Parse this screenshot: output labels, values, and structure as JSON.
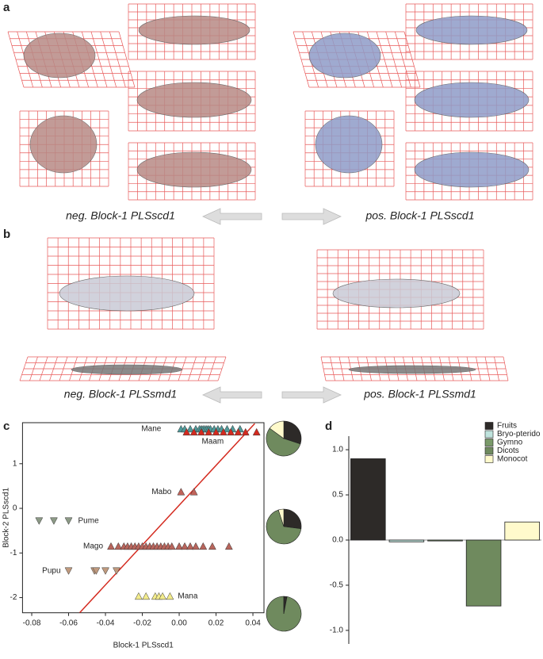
{
  "panels": {
    "a": "a",
    "b": "b",
    "c": "c",
    "d": "d"
  },
  "captions": {
    "a_neg": "neg. Block-1 PLSscd1",
    "a_pos": "pos. Block-1 PLSscd1",
    "b_neg": "neg. Block-1 PLSsmd1",
    "b_pos": "pos. Block-1 PLSsmd1"
  },
  "chart_data": [
    {
      "type": "scatter",
      "xlabel": "Block-1 PLSscd1",
      "ylabel": "Block-2 PLSscd1",
      "xlim": [
        -0.085,
        0.046
      ],
      "ylim": [
        -2.34,
        1.92
      ],
      "xticks": [
        -0.08,
        -0.06,
        -0.04,
        -0.02,
        {
          "value": 0,
          "label": "0.00"
        },
        0.02,
        0.04
      ],
      "yticks": [
        -2,
        -1,
        0,
        1
      ],
      "fit": {
        "color": "#d42a1f",
        "x": [
          -0.054,
          0.041
        ],
        "y": [
          -2.34,
          1.9
        ]
      },
      "series": [
        {
          "name": "Mane",
          "color": "#4f9a9a",
          "marker": "up",
          "x": [
            0.001,
            0.003,
            0.006,
            0.009,
            0.011,
            0.012,
            0.013,
            0.014,
            0.015,
            0.016,
            0.017,
            0.019,
            0.021,
            0.023,
            0.026,
            0.029,
            0.033
          ],
          "values": [
            1.78,
            1.78,
            1.78,
            1.78,
            1.78,
            1.78,
            1.78,
            1.78,
            1.78,
            1.78,
            1.78,
            1.78,
            1.78,
            1.78,
            1.78,
            1.78,
            1.78
          ]
        },
        {
          "name": "Maam",
          "color": "#d42a1f",
          "marker": "up",
          "x": [
            0.004,
            0.008,
            0.012,
            0.016,
            0.02,
            0.024,
            0.028,
            0.032,
            0.036,
            0.042
          ],
          "values": [
            1.71,
            1.71,
            1.71,
            1.71,
            1.71,
            1.71,
            1.71,
            1.71,
            1.71,
            1.71
          ]
        },
        {
          "name": "Mabo",
          "color": "#c0635a",
          "marker": "up",
          "x": [
            0.001,
            0.008
          ],
          "values": [
            0.37,
            0.37
          ]
        },
        {
          "name": "Pume",
          "color": "#8c9a86",
          "marker": "down",
          "x": [
            -0.076,
            -0.068,
            -0.06
          ],
          "values": [
            -0.28,
            -0.28,
            -0.28
          ]
        },
        {
          "name": "Mago",
          "color": "#b8655c",
          "marker": "up",
          "x": [
            -0.037,
            -0.033,
            -0.03,
            -0.028,
            -0.026,
            -0.024,
            -0.022,
            -0.02,
            -0.018,
            -0.016,
            -0.014,
            -0.012,
            -0.01,
            -0.008,
            -0.006,
            -0.004,
            0,
            0.003,
            0.006,
            0.009,
            0.013,
            0.018,
            0.027
          ],
          "values": [
            -0.85,
            -0.85,
            -0.85,
            -0.85,
            -0.85,
            -0.85,
            -0.85,
            -0.85,
            -0.85,
            -0.85,
            -0.85,
            -0.85,
            -0.85,
            -0.85,
            -0.85,
            -0.85,
            -0.85,
            -0.85,
            -0.85,
            -0.85,
            -0.85,
            -0.85,
            -0.85
          ]
        },
        {
          "name": "Pupu",
          "color": "#c09a7e",
          "marker": "down",
          "x": [
            -0.06,
            -0.046,
            -0.045,
            -0.04,
            -0.034
          ],
          "values": [
            -1.4,
            -1.4,
            -1.4,
            -1.4,
            -1.4
          ]
        },
        {
          "name": "Mana",
          "color": "#f3ec8c",
          "marker": "up",
          "x": [
            -0.022,
            -0.018,
            -0.013,
            -0.011,
            -0.009,
            -0.005
          ],
          "values": [
            -1.97,
            -1.97,
            -1.97,
            -1.97,
            -1.97,
            -1.97
          ]
        }
      ]
    },
    {
      "type": "pie",
      "colors": [
        "#2d2a28",
        "#bfe3dd",
        "#7a9a6a",
        "#6f8a5e",
        "#fffacc"
      ],
      "values": [
        30,
        0,
        0,
        55,
        15
      ]
    },
    {
      "type": "pie",
      "colors": [
        "#2d2a28",
        "#bfe3dd",
        "#7a9a6a",
        "#6f8a5e",
        "#fffacc"
      ],
      "values": [
        27,
        0,
        0,
        68,
        5
      ]
    },
    {
      "type": "pie",
      "colors": [
        "#2d2a28",
        "#bfe3dd",
        "#7a9a6a",
        "#6f8a5e",
        "#fffacc"
      ],
      "values": [
        3,
        0,
        0,
        97,
        0
      ]
    },
    {
      "type": "bar",
      "categories": [
        "Fruits",
        "Bryo-pterido",
        "Gymno",
        "Dicots",
        "Monocot"
      ],
      "colors": [
        "#2d2a28",
        "#bfe3dd",
        "#7a9a6a",
        "#6f8a5e",
        "#fffacc"
      ],
      "values": [
        0.9,
        -0.02,
        -0.01,
        -0.73,
        0.2
      ],
      "ylim": [
        -1.15,
        1.15
      ],
      "yticks": [
        {
          "value": 1,
          "label": "1.0"
        },
        0.5,
        {
          "value": 0,
          "label": "0.0"
        },
        -0.5,
        {
          "value": -1,
          "label": "-1.0"
        }
      ],
      "legend": "top-right"
    }
  ]
}
